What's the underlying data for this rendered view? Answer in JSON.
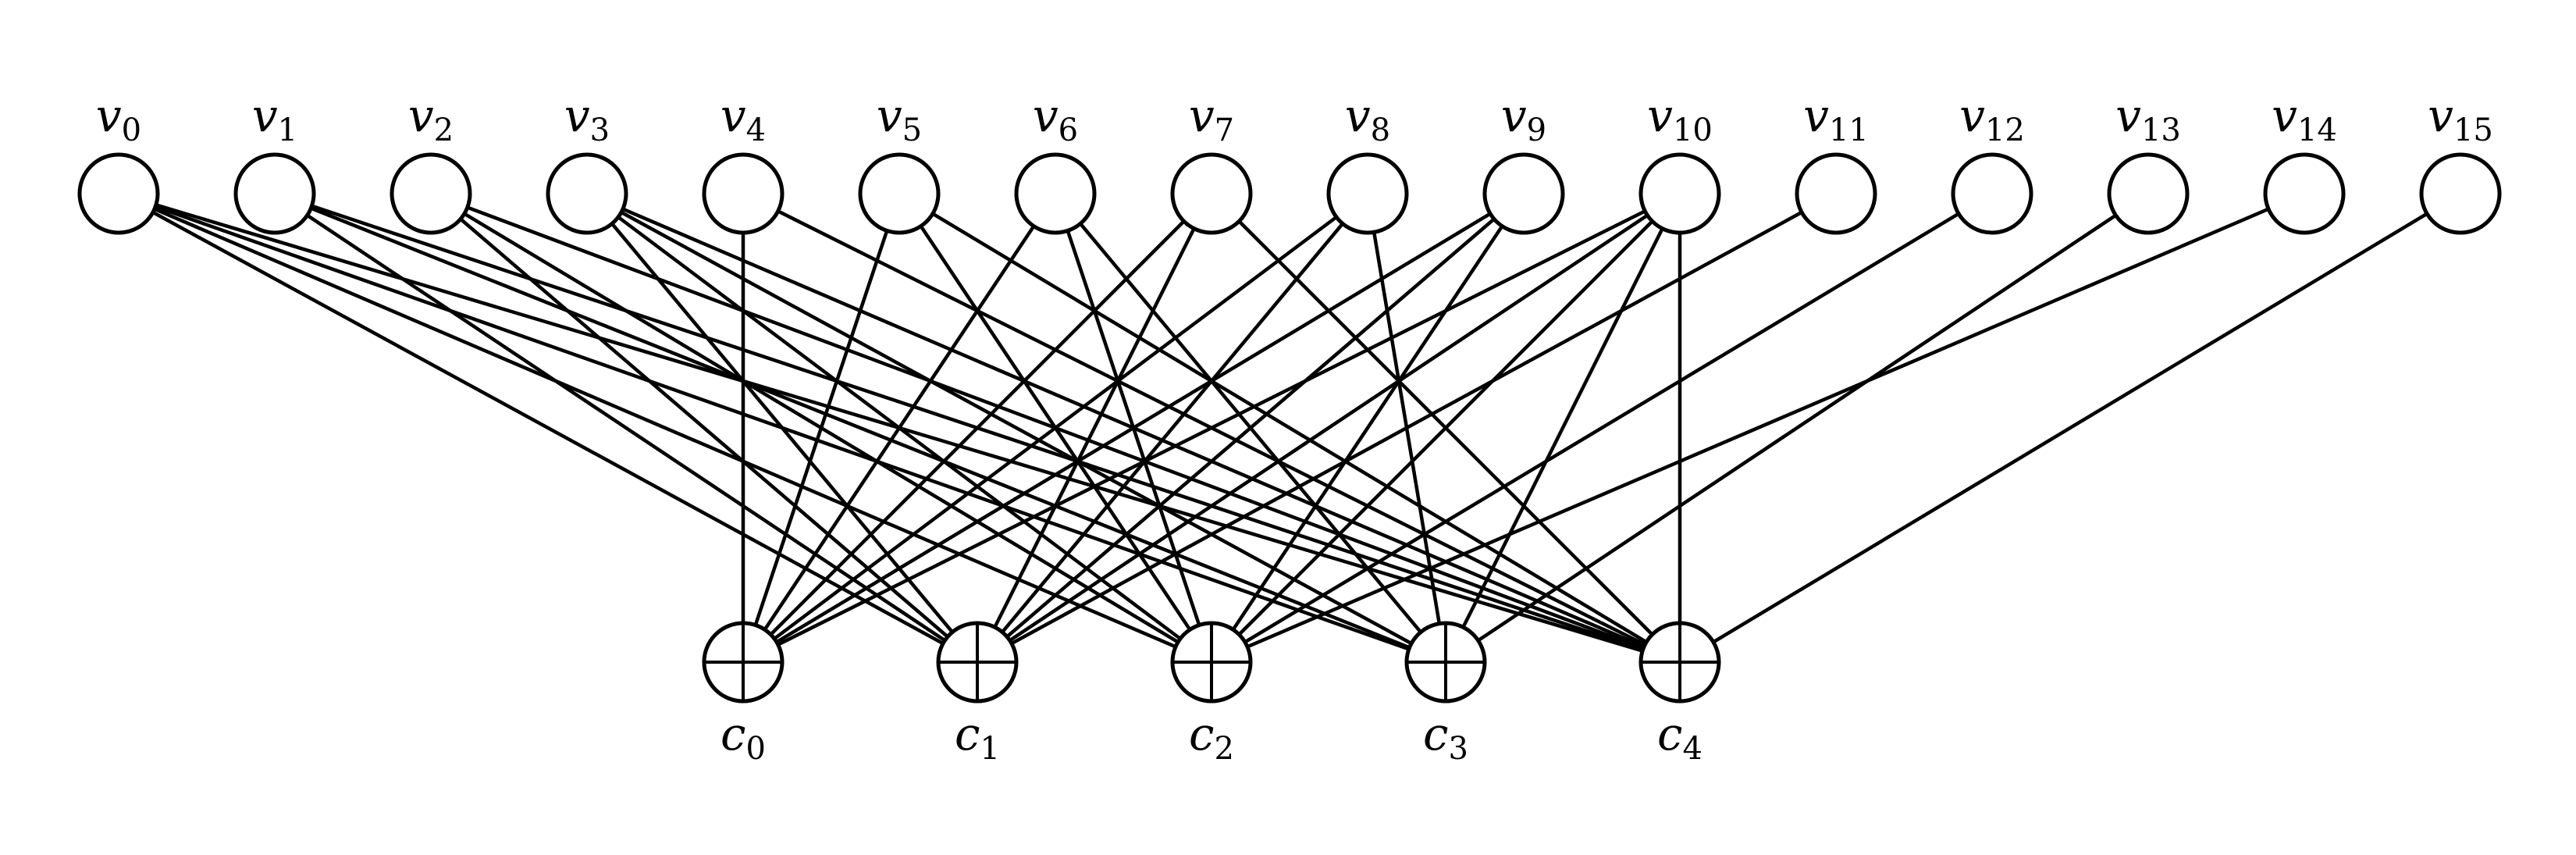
{
  "diagram": {
    "variable_nodes": [
      {
        "id": "v0",
        "label": "v",
        "sub": "0"
      },
      {
        "id": "v1",
        "label": "v",
        "sub": "1"
      },
      {
        "id": "v2",
        "label": "v",
        "sub": "2"
      },
      {
        "id": "v3",
        "label": "v",
        "sub": "3"
      },
      {
        "id": "v4",
        "label": "v",
        "sub": "4"
      },
      {
        "id": "v5",
        "label": "v",
        "sub": "5"
      },
      {
        "id": "v6",
        "label": "v",
        "sub": "6"
      },
      {
        "id": "v7",
        "label": "v",
        "sub": "7"
      },
      {
        "id": "v8",
        "label": "v",
        "sub": "8"
      },
      {
        "id": "v9",
        "label": "v",
        "sub": "9"
      },
      {
        "id": "v10",
        "label": "v",
        "sub": "10"
      },
      {
        "id": "v11",
        "label": "v",
        "sub": "11"
      },
      {
        "id": "v12",
        "label": "v",
        "sub": "12"
      },
      {
        "id": "v13",
        "label": "v",
        "sub": "13"
      },
      {
        "id": "v14",
        "label": "v",
        "sub": "14"
      },
      {
        "id": "v15",
        "label": "v",
        "sub": "15"
      }
    ],
    "check_nodes": [
      {
        "id": "c0",
        "label": "c",
        "sub": "0",
        "symbol": "xor"
      },
      {
        "id": "c1",
        "label": "c",
        "sub": "1",
        "symbol": "xor"
      },
      {
        "id": "c2",
        "label": "c",
        "sub": "2",
        "symbol": "xor"
      },
      {
        "id": "c3",
        "label": "c",
        "sub": "3",
        "symbol": "xor"
      },
      {
        "id": "c4",
        "label": "c",
        "sub": "4",
        "symbol": "xor"
      }
    ],
    "edges": [
      [
        "v0",
        "c1"
      ],
      [
        "v0",
        "c2"
      ],
      [
        "v0",
        "c3"
      ],
      [
        "v0",
        "c4"
      ],
      [
        "v1",
        "c1"
      ],
      [
        "v1",
        "c3"
      ],
      [
        "v1",
        "c4"
      ],
      [
        "v2",
        "c1"
      ],
      [
        "v2",
        "c2"
      ],
      [
        "v2",
        "c4"
      ],
      [
        "v3",
        "c1"
      ],
      [
        "v3",
        "c2"
      ],
      [
        "v3",
        "c3"
      ],
      [
        "v3",
        "c4"
      ],
      [
        "v4",
        "c0"
      ],
      [
        "v4",
        "c4"
      ],
      [
        "v5",
        "c0"
      ],
      [
        "v5",
        "c2"
      ],
      [
        "v5",
        "c4"
      ],
      [
        "v6",
        "c0"
      ],
      [
        "v6",
        "c2"
      ],
      [
        "v6",
        "c3"
      ],
      [
        "v7",
        "c0"
      ],
      [
        "v7",
        "c1"
      ],
      [
        "v7",
        "c4"
      ],
      [
        "v8",
        "c0"
      ],
      [
        "v8",
        "c1"
      ],
      [
        "v8",
        "c3"
      ],
      [
        "v9",
        "c0"
      ],
      [
        "v9",
        "c1"
      ],
      [
        "v9",
        "c2"
      ],
      [
        "v10",
        "c0"
      ],
      [
        "v10",
        "c1"
      ],
      [
        "v10",
        "c2"
      ],
      [
        "v10",
        "c3"
      ],
      [
        "v10",
        "c4"
      ],
      [
        "v11",
        "c1"
      ],
      [
        "v12",
        "c2"
      ],
      [
        "v13",
        "c3"
      ],
      [
        "v14",
        "c2"
      ],
      [
        "v15",
        "c4"
      ]
    ]
  }
}
